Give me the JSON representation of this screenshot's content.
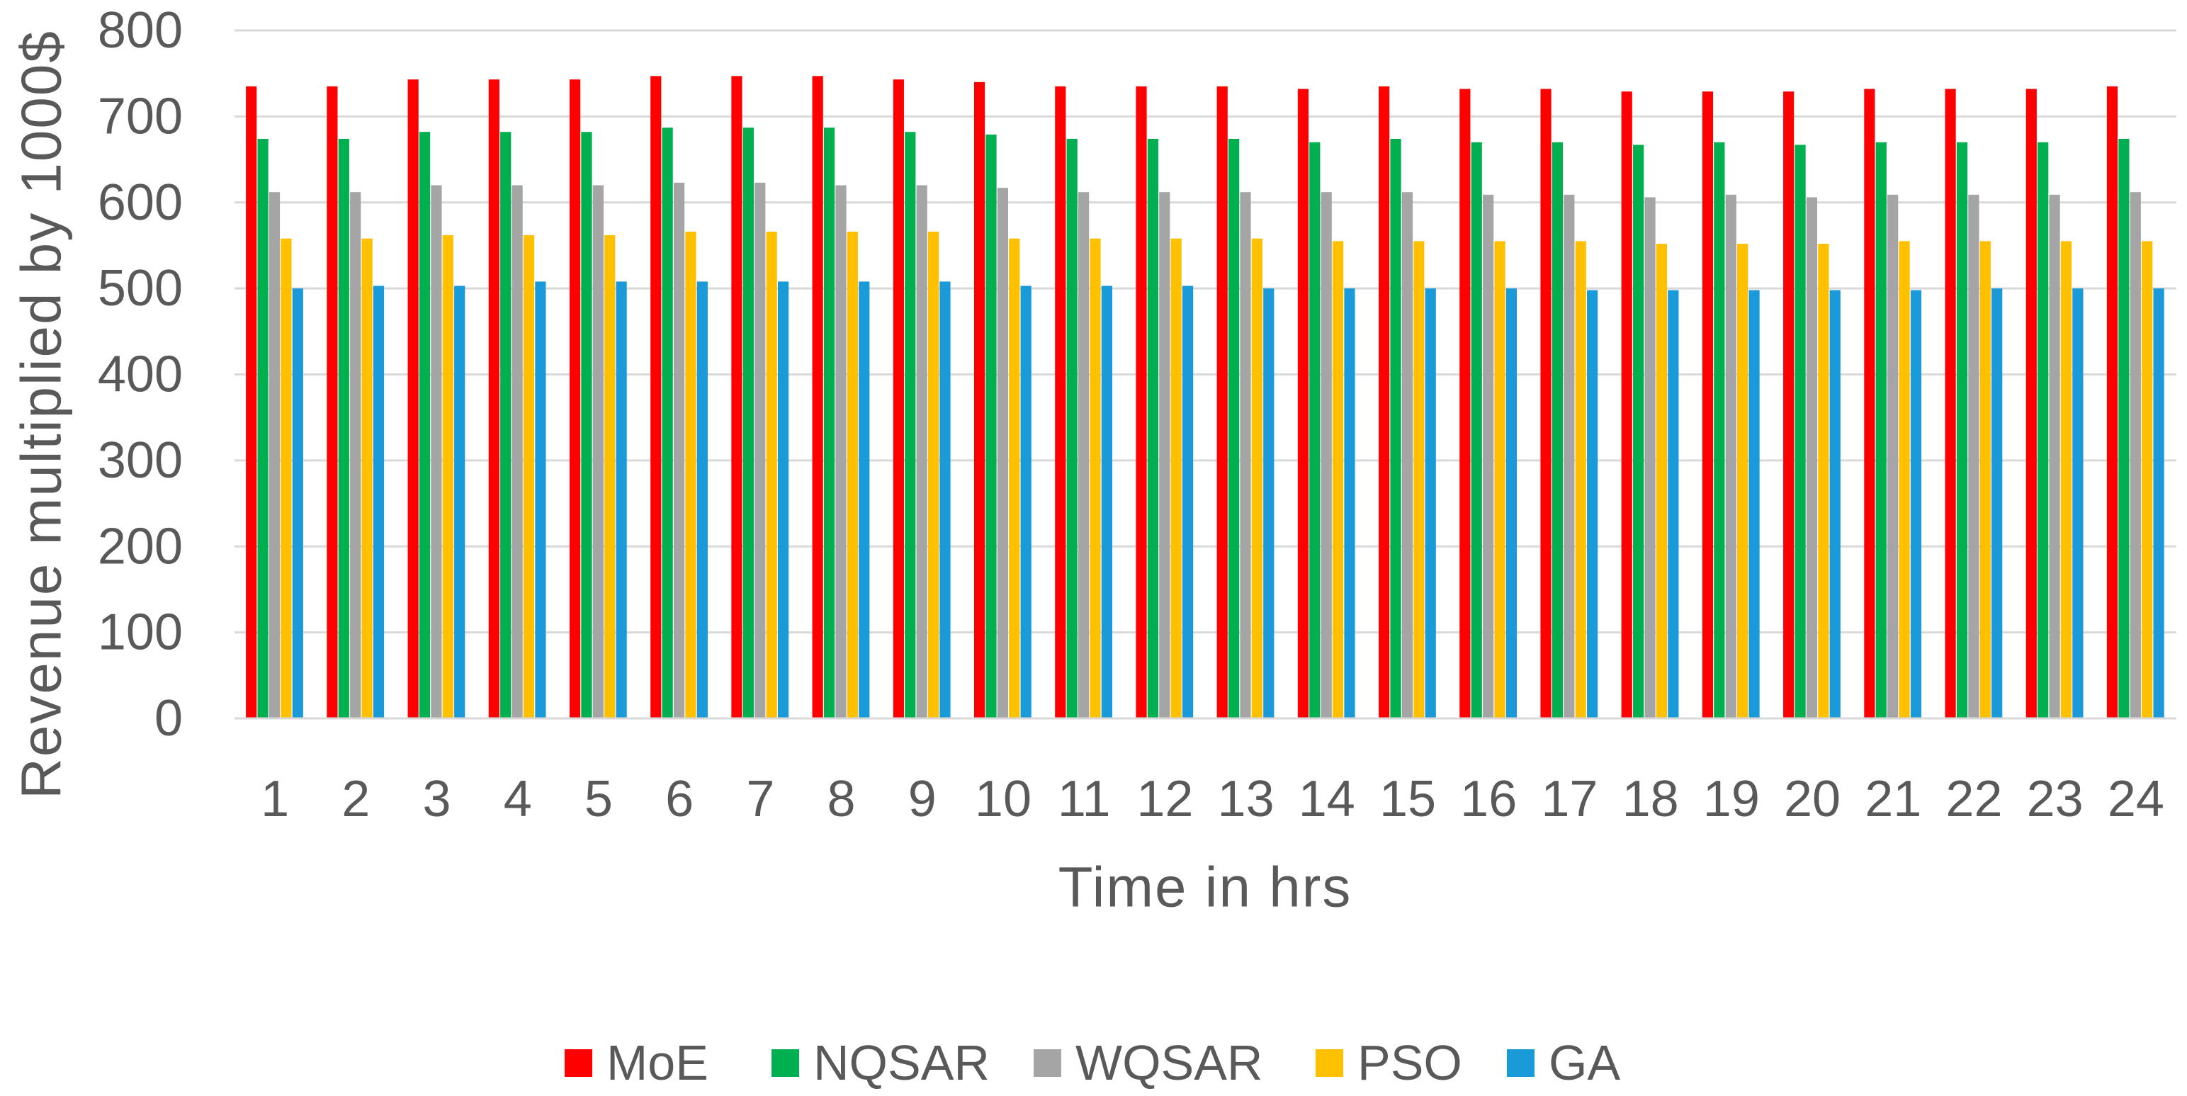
{
  "chart_data": {
    "type": "bar",
    "title": "",
    "xlabel": "Time in hrs",
    "ylabel": "Revenue multiplied by 1000$",
    "ylim": [
      0,
      800
    ],
    "yticks": [
      0,
      100,
      200,
      300,
      400,
      500,
      600,
      700,
      800
    ],
    "grid": true,
    "legend": "bottom",
    "categories": [
      "1",
      "2",
      "3",
      "4",
      "5",
      "6",
      "7",
      "8",
      "9",
      "10",
      "11",
      "12",
      "13",
      "14",
      "15",
      "16",
      "17",
      "18",
      "19",
      "20",
      "21",
      "22",
      "23",
      "24"
    ],
    "series": [
      {
        "name": "MoE",
        "color": "#FF0000",
        "values": [
          735,
          735,
          743,
          743,
          743,
          747,
          747,
          747,
          743,
          740,
          735,
          735,
          735,
          732,
          735,
          732,
          732,
          729,
          729,
          729,
          732,
          732,
          732,
          735
        ]
      },
      {
        "name": "NQSAR",
        "color": "#00B050",
        "values": [
          674,
          674,
          682,
          682,
          682,
          687,
          687,
          687,
          682,
          679,
          674,
          674,
          674,
          670,
          674,
          670,
          670,
          667,
          670,
          667,
          670,
          670,
          670,
          674
        ]
      },
      {
        "name": "WQSAR",
        "color": "#A5A5A5",
        "values": [
          612,
          612,
          620,
          620,
          620,
          623,
          623,
          620,
          620,
          617,
          612,
          612,
          612,
          612,
          612,
          609,
          609,
          606,
          609,
          606,
          609,
          609,
          609,
          612
        ]
      },
      {
        "name": "PSO",
        "color": "#FFC000",
        "values": [
          558,
          558,
          562,
          562,
          562,
          566,
          566,
          566,
          566,
          558,
          558,
          558,
          558,
          555,
          555,
          555,
          555,
          552,
          552,
          552,
          555,
          555,
          555,
          555
        ]
      },
      {
        "name": "GA",
        "color": "#1A9AD9",
        "values": [
          500,
          503,
          503,
          508,
          508,
          508,
          508,
          508,
          508,
          503,
          503,
          503,
          500,
          500,
          500,
          500,
          498,
          498,
          498,
          498,
          498,
          500,
          500,
          500
        ]
      }
    ]
  }
}
